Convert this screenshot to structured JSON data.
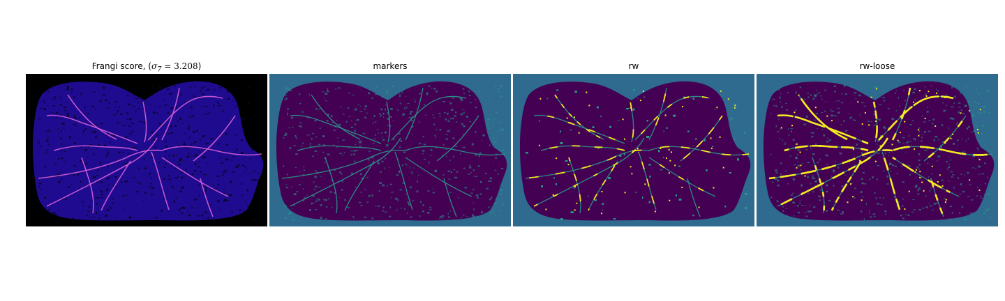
{
  "panels": [
    {
      "title_prefix": "Frangi score, (",
      "title_sigma": "σ",
      "title_sub": "7",
      "title_eq": " = 3.208",
      "title_suffix": ")",
      "colormap": "magma",
      "background": "#000000",
      "tissue": "#1e0b8f",
      "vessel": "#d55cd8"
    },
    {
      "title": "markers",
      "colormap": "viridis",
      "background": "#2e6b8e",
      "tissue": "#440154",
      "vessel": "#2a9a8a"
    },
    {
      "title": "rw",
      "colormap": "viridis",
      "background": "#2e6b8e",
      "tissue": "#440154",
      "vessel": "#2a9a8a",
      "highlight": "#f4ec22"
    },
    {
      "title": "rw-loose",
      "colormap": "viridis",
      "background": "#2e6b8e",
      "tissue": "#440154",
      "vessel": "#2a9a8a",
      "highlight": "#f4ec22"
    }
  ]
}
